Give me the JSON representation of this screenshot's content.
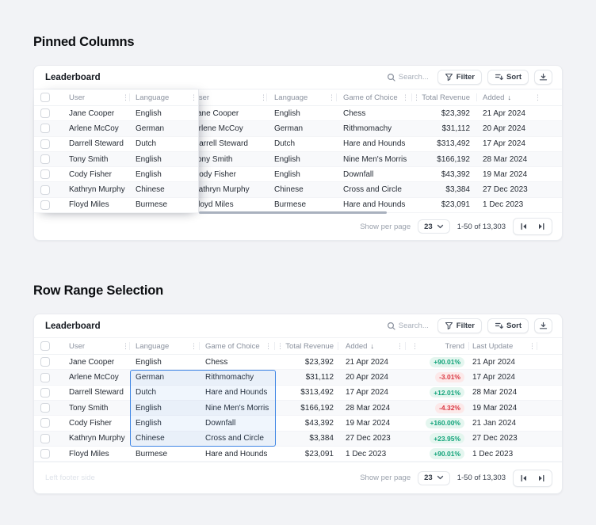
{
  "sections": {
    "pinned": {
      "title": "Pinned Columns",
      "card_title": "Leaderboard",
      "pinned_columns": [
        "User",
        "Language"
      ]
    },
    "range": {
      "title": "Row Range Selection",
      "card_title": "Leaderboard",
      "left_footer_text": "Left footer side",
      "selection": {
        "columns": [
          "Language",
          "Game of Choice"
        ],
        "from_user": "Arlene McCoy",
        "to_user": "Kathryn Murphy"
      }
    }
  },
  "toolbar": {
    "search_placeholder": "Search...",
    "filter_label": "Filter",
    "sort_label": "Sort"
  },
  "columns": {
    "user": "User",
    "language": "Language",
    "game": "Game of Choice",
    "revenue": "Total Revenue",
    "added": "Added",
    "trend": "Trend",
    "last_update": "Last Update"
  },
  "rows": [
    {
      "user": "Jane Cooper",
      "language": "English",
      "game": "Chess",
      "revenue": "$23,392",
      "added": "21 Apr 2024",
      "trend": "+90.01%",
      "trend_dir": "up",
      "last_update": "21 Apr 2024"
    },
    {
      "user": "Arlene McCoy",
      "language": "German",
      "game": "Rithmomachy",
      "revenue": "$31,112",
      "added": "20 Apr 2024",
      "trend": "-3.01%",
      "trend_dir": "down",
      "last_update": "17 Apr 2024"
    },
    {
      "user": "Darrell Steward",
      "language": "Dutch",
      "game": "Hare and Hounds",
      "revenue": "$313,492",
      "added": "17 Apr 2024",
      "trend": "+12.01%",
      "trend_dir": "up",
      "last_update": "28 Mar 2024"
    },
    {
      "user": "Tony Smith",
      "language": "English",
      "game": "Nine Men's Morris",
      "revenue": "$166,192",
      "added": "28 Mar 2024",
      "trend": "-4.32%",
      "trend_dir": "down",
      "last_update": "19 Mar 2024"
    },
    {
      "user": "Cody Fisher",
      "language": "English",
      "game": "Downfall",
      "revenue": "$43,392",
      "added": "19 Mar 2024",
      "trend": "+160.00%",
      "trend_dir": "up",
      "last_update": "21 Jan 2024"
    },
    {
      "user": "Kathryn Murphy",
      "language": "Chinese",
      "game": "Cross and Circle",
      "revenue": "$3,384",
      "added": "27 Dec 2023",
      "trend": "+23.95%",
      "trend_dir": "up",
      "last_update": "27 Dec 2023"
    },
    {
      "user": "Floyd Miles",
      "language": "Burmese",
      "game": "Hare and Hounds",
      "revenue": "$23,091",
      "added": "1 Dec 2023",
      "trend": "+90.01%",
      "trend_dir": "up",
      "last_update": "1 Dec 2023"
    }
  ],
  "footer": {
    "show_per_page_label": "Show per page",
    "per_page_value": "23",
    "range_text": "1-50 of 13,303"
  },
  "colors": {
    "selection_blue": "#3F86E5",
    "trend_up_text": "#12A37A",
    "trend_up_bg": "#E4F6EF",
    "trend_down_text": "#D93843",
    "trend_down_bg": "#FCE9E9"
  }
}
